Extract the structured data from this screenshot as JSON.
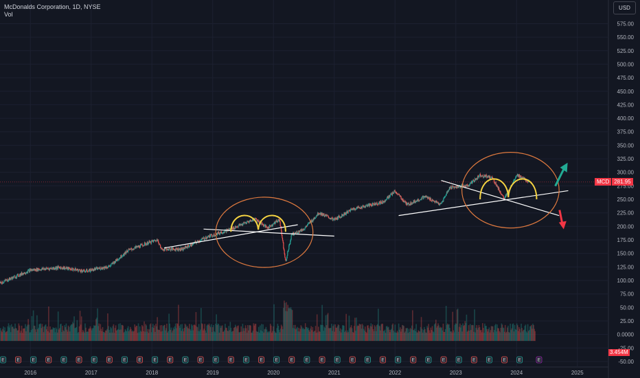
{
  "header": {
    "title": "McDonalds Corporation, 1D, NYSE",
    "indicator": "Vol"
  },
  "currency": "USD",
  "price_tag": {
    "symbol": "MCD",
    "value": "281.95"
  },
  "volume_tag": "3.454M",
  "colors": {
    "background": "#131722",
    "up": "#26a69a",
    "down": "#ef5350",
    "accent": "#f23645",
    "trend": "#ffffff",
    "circle": "#e07a3f",
    "shape": "#f5d342",
    "arrow_up": "#22ab94",
    "arrow_down": "#f23645"
  },
  "chart_data": {
    "type": "candlestick",
    "title": "McDonalds Corporation, 1D, NYSE",
    "x_ticks": [
      "2016",
      "2017",
      "2018",
      "2019",
      "2020",
      "2021",
      "2022",
      "2023",
      "2024",
      "2025"
    ],
    "y_ticks": [
      "575.00",
      "550.00",
      "525.00",
      "500.00",
      "475.00",
      "450.00",
      "425.00",
      "400.00",
      "375.00",
      "350.00",
      "325.00",
      "300.00",
      "275.00",
      "250.00",
      "225.00",
      "200.00",
      "175.00",
      "150.00",
      "125.00",
      "100.00",
      "75.00",
      "50.00",
      "25.00",
      "0.0000",
      "-25.00",
      "-50.00"
    ],
    "ylim": [
      -50,
      590
    ],
    "price_series": [
      {
        "x": 2015.5,
        "y": 95
      },
      {
        "x": 2016.0,
        "y": 119
      },
      {
        "x": 2016.5,
        "y": 124
      },
      {
        "x": 2016.9,
        "y": 117
      },
      {
        "x": 2017.3,
        "y": 126
      },
      {
        "x": 2017.6,
        "y": 155
      },
      {
        "x": 2018.0,
        "y": 172
      },
      {
        "x": 2018.1,
        "y": 175
      },
      {
        "x": 2018.15,
        "y": 158
      },
      {
        "x": 2018.5,
        "y": 158
      },
      {
        "x": 2018.9,
        "y": 180
      },
      {
        "x": 2019.3,
        "y": 195
      },
      {
        "x": 2019.7,
        "y": 214
      },
      {
        "x": 2019.9,
        "y": 197
      },
      {
        "x": 2020.1,
        "y": 213
      },
      {
        "x": 2020.2,
        "y": 135
      },
      {
        "x": 2020.3,
        "y": 185
      },
      {
        "x": 2020.5,
        "y": 195
      },
      {
        "x": 2020.75,
        "y": 225
      },
      {
        "x": 2021.0,
        "y": 212
      },
      {
        "x": 2021.3,
        "y": 232
      },
      {
        "x": 2021.8,
        "y": 245
      },
      {
        "x": 2022.0,
        "y": 265
      },
      {
        "x": 2022.2,
        "y": 240
      },
      {
        "x": 2022.5,
        "y": 255
      },
      {
        "x": 2022.75,
        "y": 240
      },
      {
        "x": 2022.9,
        "y": 272
      },
      {
        "x": 2023.2,
        "y": 275
      },
      {
        "x": 2023.4,
        "y": 295
      },
      {
        "x": 2023.6,
        "y": 290
      },
      {
        "x": 2023.8,
        "y": 250
      },
      {
        "x": 2024.0,
        "y": 296
      },
      {
        "x": 2024.2,
        "y": 282
      }
    ],
    "annotations": {
      "trendlines": [
        {
          "from": {
            "x": 2018.2,
            "y": 160
          },
          "to": {
            "x": 2020.4,
            "y": 203
          }
        },
        {
          "from": {
            "x": 2018.85,
            "y": 195
          },
          "to": {
            "x": 2021.0,
            "y": 182
          }
        },
        {
          "from": {
            "x": 2022.06,
            "y": 220
          },
          "to": {
            "x": 2024.85,
            "y": 266
          }
        },
        {
          "from": {
            "x": 2022.76,
            "y": 285
          },
          "to": {
            "x": 2024.7,
            "y": 220
          }
        }
      ],
      "circles": [
        {
          "cx": 2019.85,
          "cy": 189,
          "rx": 0.8,
          "ry": 65
        },
        {
          "cx": 2023.9,
          "cy": 267,
          "rx": 0.8,
          "ry": 70
        }
      ],
      "m_shapes": [
        {
          "x1": 2019.3,
          "x2": 2020.2,
          "base": 190,
          "top": 222
        },
        {
          "x1": 2023.4,
          "x2": 2024.33,
          "base": 250,
          "top": 292
        }
      ],
      "arrows": [
        {
          "dir": "up",
          "x": 2024.75,
          "y": 300
        },
        {
          "dir": "down",
          "x": 2024.73,
          "y": 215
        }
      ]
    },
    "volume": {
      "type": "bar",
      "range": "0.0000 to 75.00",
      "last": "3.454M"
    },
    "events": {
      "label": "E",
      "dividend_marker": "E"
    },
    "grid": true,
    "legend": "none"
  }
}
